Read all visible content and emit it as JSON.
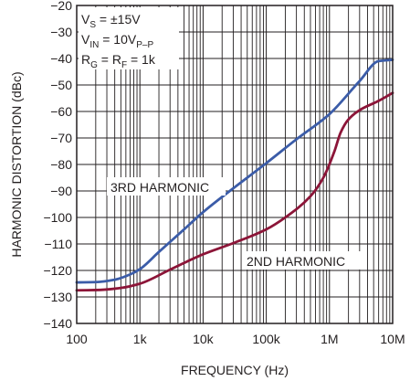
{
  "chart_data": {
    "type": "line",
    "xlabel": "FREQUENCY (Hz)",
    "ylabel": "HARMONIC DISTORTION (dBc)",
    "x_scale": "log",
    "xlim": [
      100,
      10000000
    ],
    "ylim": [
      -140,
      -20
    ],
    "x_ticks": [
      100,
      1000,
      10000,
      100000,
      1000000,
      10000000
    ],
    "x_tick_labels": [
      "100",
      "1k",
      "10k",
      "100k",
      "1M",
      "10M"
    ],
    "y_ticks": [
      -20,
      -30,
      -40,
      -50,
      -60,
      -70,
      -80,
      -90,
      -100,
      -110,
      -120,
      -130,
      -140
    ],
    "y_tick_labels": [
      "−20",
      "−30",
      "−40",
      "−50",
      "−60",
      "−70",
      "−80",
      "−90",
      "−100",
      "−110",
      "−120",
      "−130",
      "−140"
    ],
    "grid": true,
    "conditions": {
      "vs": {
        "main": "V",
        "sub": "S",
        "rest": " = ±15V"
      },
      "vin": {
        "main": "V",
        "sub": "IN",
        "rest": " = 10V",
        "sub2": "P–P"
      },
      "rg": {
        "main": "R",
        "sub": "G",
        "mid": " = R",
        "sub2": "F",
        "rest": " = 1k"
      }
    },
    "series": [
      {
        "name": "3RD HARMONIC",
        "color": "#3b5ca8",
        "x": [
          100,
          200,
          400,
          700,
          1000,
          2000,
          5000,
          10000,
          30000,
          100000,
          300000,
          1000000,
          3000000,
          6000000,
          10000000
        ],
        "y": [
          -124.5,
          -124.4,
          -123.5,
          -121.5,
          -119.5,
          -113,
          -104.5,
          -98,
          -89,
          -79.5,
          -70.5,
          -61,
          -48.5,
          -41,
          -40.5
        ]
      },
      {
        "name": "2ND HARMONIC",
        "color": "#8c1538",
        "x": [
          100,
          200,
          500,
          1000,
          3000,
          10000,
          30000,
          100000,
          200000,
          500000,
          800000,
          1200000,
          1500000,
          2000000,
          3000000,
          6000000,
          10000000
        ],
        "y": [
          -127.5,
          -127.4,
          -126.6,
          -125,
          -119.7,
          -113.9,
          -109.7,
          -104.5,
          -100,
          -92,
          -85,
          -75,
          -68,
          -63,
          -59.5,
          -56,
          -53
        ]
      }
    ],
    "annotations": {
      "third": "3RD HARMONIC",
      "second": "2ND HARMONIC"
    }
  }
}
